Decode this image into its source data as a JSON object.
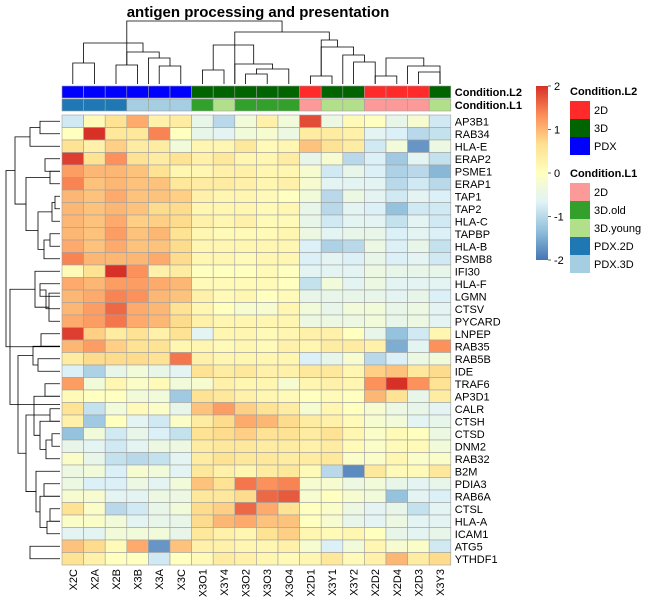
{
  "chart_data": {
    "type": "heatmap",
    "title": "antigen processing and presentation",
    "columns": [
      "X2C",
      "X2A",
      "X2B",
      "X3B",
      "X3A",
      "X3C",
      "X3O1",
      "X3Y4",
      "X3O2",
      "X3O3",
      "X3O4",
      "X2D1",
      "X3Y1",
      "X3Y2",
      "X2D2",
      "X2D4",
      "X2D3",
      "X3Y3"
    ],
    "rows": [
      "AP3B1",
      "RAB34",
      "HLA-E",
      "ERAP2",
      "PSME1",
      "ERAP1",
      "TAP1",
      "TAP2",
      "HLA-C",
      "TAPBP",
      "HLA-B",
      "PSMB8",
      "IFI30",
      "HLA-F",
      "LGMN",
      "CTSV",
      "PYCARD",
      "LNPEP",
      "RAB35",
      "RAB5B",
      "IDE",
      "TRAF6",
      "AP3D1",
      "CALR",
      "CTSH",
      "CTSD",
      "DNM2",
      "RAB32",
      "B2M",
      "PDIA3",
      "RAB6A",
      "CTSL",
      "HLA-A",
      "ICAM1",
      "ATG5",
      "YTHDF1"
    ],
    "values": [
      [
        -0.8,
        0.1,
        0.6,
        1.1,
        0.3,
        0.4,
        -0.5,
        -1.0,
        -0.3,
        0.3,
        -0.3,
        1.8,
        -0.4,
        0.1,
        0.0,
        -0.5,
        -0.2,
        -0.8
      ],
      [
        0.0,
        2.3,
        0.5,
        0.5,
        1.4,
        0.0,
        -0.5,
        -0.6,
        -0.3,
        -0.2,
        -0.4,
        0.4,
        0.4,
        0.3,
        -0.6,
        -0.7,
        -1.0,
        -0.9
      ],
      [
        0.6,
        0.3,
        0.8,
        0.4,
        0.4,
        -0.3,
        0.2,
        0.2,
        0.5,
        0.1,
        0.2,
        0.9,
        0.6,
        0.4,
        -0.8,
        -0.3,
        -1.7,
        -0.4
      ],
      [
        1.9,
        0.6,
        1.3,
        0.6,
        0.4,
        0.6,
        0.3,
        0.5,
        0.2,
        0.2,
        0.4,
        -0.5,
        -0.2,
        -1.0,
        -0.7,
        -1.2,
        -0.6,
        -0.9
      ],
      [
        1.2,
        1.0,
        1.0,
        0.9,
        0.6,
        0.2,
        0.2,
        0.3,
        0.3,
        0.2,
        0.2,
        -0.2,
        -0.8,
        -0.5,
        -0.7,
        -1.1,
        -1.0,
        -1.4
      ],
      [
        1.4,
        0.9,
        1.0,
        0.9,
        0.9,
        0.5,
        0.4,
        0.4,
        0.3,
        0.2,
        0.3,
        -0.2,
        -0.6,
        -0.6,
        -0.6,
        -1.0,
        -0.8,
        -1.0
      ],
      [
        1.0,
        0.9,
        1.1,
        0.9,
        0.9,
        0.8,
        0.3,
        0.2,
        0.2,
        0.1,
        0.0,
        -0.3,
        -1.0,
        -0.4,
        -0.6,
        -0.8,
        -0.6,
        -0.7
      ],
      [
        1.0,
        0.9,
        1.0,
        0.9,
        0.7,
        0.7,
        0.2,
        0.2,
        0.2,
        0.1,
        0.2,
        -0.5,
        -1.0,
        -0.6,
        -0.7,
        -1.3,
        -0.8,
        -0.8
      ],
      [
        1.0,
        0.9,
        1.1,
        0.8,
        0.8,
        0.7,
        0.3,
        0.2,
        0.3,
        0.1,
        0.1,
        -0.5,
        -0.8,
        -0.6,
        -0.6,
        -0.9,
        -0.6,
        -0.8
      ],
      [
        1.0,
        0.9,
        1.2,
        0.9,
        1.0,
        0.6,
        0.2,
        0.1,
        0.1,
        0.1,
        0.2,
        -0.4,
        -0.6,
        -0.5,
        -0.5,
        -0.7,
        -0.6,
        -0.7
      ],
      [
        1.1,
        0.9,
        1.1,
        0.9,
        0.9,
        0.7,
        0.2,
        0.2,
        0.2,
        0.2,
        0.2,
        -0.7,
        -1.1,
        -1.0,
        -0.4,
        -0.7,
        -0.5,
        -0.9
      ],
      [
        1.4,
        1.0,
        1.0,
        1.0,
        1.1,
        0.7,
        0.2,
        0.2,
        0.1,
        0.2,
        0.2,
        -0.7,
        -0.6,
        -0.7,
        -0.5,
        -0.7,
        -0.6,
        -0.8
      ],
      [
        0.1,
        0.6,
        2.6,
        1.3,
        0.3,
        0.4,
        0.0,
        0.0,
        0.0,
        0.1,
        0.0,
        -0.6,
        -0.6,
        -0.6,
        -0.4,
        -0.5,
        -0.5,
        -0.5
      ],
      [
        1.1,
        1.0,
        1.2,
        1.2,
        1.1,
        1.0,
        0.1,
        0.1,
        0.1,
        0.1,
        0.0,
        -0.9,
        -0.3,
        -0.6,
        -0.4,
        -0.6,
        -0.6,
        -0.6
      ],
      [
        1.0,
        1.1,
        1.4,
        1.3,
        1.0,
        0.9,
        0.3,
        0.1,
        0.2,
        0.0,
        0.1,
        -0.5,
        -0.5,
        -0.5,
        -0.5,
        -0.6,
        -0.5,
        -0.7
      ],
      [
        1.0,
        1.2,
        1.6,
        1.1,
        1.0,
        0.6,
        0.2,
        0.0,
        -0.2,
        -0.2,
        0.2,
        -0.3,
        -0.5,
        -0.3,
        -0.3,
        -0.5,
        -0.4,
        -0.6
      ],
      [
        1.1,
        1.2,
        1.5,
        1.1,
        1.0,
        0.7,
        0.3,
        0.2,
        0.2,
        0.2,
        0.2,
        -0.4,
        -0.4,
        -0.4,
        -0.3,
        -0.5,
        -0.4,
        -0.6
      ],
      [
        1.9,
        0.8,
        0.4,
        0.6,
        0.3,
        0.6,
        -0.6,
        0.2,
        0.2,
        0.1,
        0.2,
        0.3,
        0.3,
        0.0,
        -0.5,
        -1.3,
        -0.8,
        0.2
      ],
      [
        1.0,
        1.2,
        0.8,
        0.6,
        0.6,
        0.2,
        0.2,
        0.1,
        0.2,
        0.1,
        0.3,
        0.2,
        0.4,
        0.4,
        0.3,
        -1.5,
        -0.6,
        1.3
      ],
      [
        0.4,
        0.7,
        0.7,
        0.7,
        0.6,
        1.5,
        0.3,
        0.2,
        0.2,
        0.2,
        0.2,
        -0.7,
        -0.5,
        -0.2,
        -1.0,
        -0.7,
        -0.4,
        -0.3
      ],
      [
        -0.7,
        -1.1,
        -0.5,
        -0.3,
        -0.5,
        -0.6,
        0.6,
        0.4,
        0.5,
        0.3,
        0.3,
        0.5,
        0.5,
        0.2,
        0.8,
        0.9,
        0.5,
        0.7
      ],
      [
        1.2,
        -0.3,
        0.2,
        -0.1,
        0.1,
        -0.3,
        -0.2,
        0.3,
        0.2,
        0.2,
        -0.2,
        0.2,
        0.3,
        0.2,
        1.3,
        2.1,
        1.3,
        0.6
      ],
      [
        0.1,
        0.0,
        0.0,
        -0.3,
        -0.3,
        -1.2,
        0.6,
        0.5,
        0.3,
        0.2,
        0.1,
        0.0,
        0.1,
        0.0,
        1.0,
        0.6,
        -0.5,
        0.4
      ],
      [
        0.6,
        -0.9,
        -0.3,
        0.1,
        -0.1,
        -0.5,
        0.9,
        1.2,
        0.8,
        0.6,
        0.4,
        -0.2,
        0.2,
        0.0,
        -0.2,
        -0.4,
        -0.5,
        -0.6
      ],
      [
        0.3,
        -1.2,
        0.0,
        -0.6,
        -0.8,
        -0.1,
        0.4,
        0.7,
        1.1,
        1.0,
        0.7,
        0.4,
        0.3,
        0.1,
        -0.2,
        -0.3,
        -0.6,
        -0.5
      ],
      [
        -1.3,
        -0.3,
        -0.8,
        -0.5,
        -0.7,
        -0.9,
        0.6,
        0.7,
        0.8,
        0.6,
        0.6,
        0.4,
        0.6,
        0.2,
        -0.1,
        0.1,
        0.0,
        -0.4
      ],
      [
        -0.5,
        -0.6,
        -0.8,
        -0.6,
        -0.4,
        -0.4,
        0.4,
        0.5,
        0.5,
        0.4,
        0.4,
        0.3,
        0.4,
        0.1,
        -0.1,
        0.1,
        0.1,
        -0.3
      ],
      [
        -0.1,
        -0.5,
        -0.9,
        -1.0,
        -0.9,
        -0.6,
        0.4,
        0.6,
        0.5,
        0.5,
        0.4,
        0.4,
        0.5,
        -0.1,
        -0.1,
        0.2,
        -0.1,
        -0.1
      ],
      [
        -0.4,
        -0.3,
        -0.7,
        -0.2,
        -0.3,
        -0.6,
        0.5,
        0.3,
        0.2,
        0.4,
        0.5,
        0.1,
        -1.0,
        -1.8,
        0.5,
        0.1,
        0.1,
        0.5
      ],
      [
        -0.4,
        -0.7,
        -0.7,
        -0.4,
        -0.6,
        -0.3,
        0.9,
        0.6,
        1.5,
        1.3,
        1.4,
        -0.2,
        -0.2,
        -0.4,
        -0.3,
        -0.5,
        -0.6,
        -0.5
      ],
      [
        -0.2,
        -0.2,
        -0.6,
        -0.6,
        -0.4,
        -0.4,
        0.5,
        0.5,
        0.7,
        1.6,
        1.7,
        -0.2,
        0.0,
        -0.2,
        -0.3,
        -1.3,
        -0.6,
        -0.7
      ],
      [
        0.6,
        -0.1,
        -1.0,
        -0.8,
        -0.5,
        -0.3,
        0.7,
        0.8,
        1.6,
        1.1,
        0.6,
        0.0,
        -0.1,
        -0.4,
        -0.6,
        -0.5,
        -0.9,
        -0.6
      ],
      [
        -0.1,
        -0.1,
        -0.3,
        -0.6,
        -0.5,
        -0.5,
        0.7,
        1.0,
        1.1,
        0.9,
        0.9,
        0.0,
        -0.2,
        -0.5,
        -0.6,
        -0.4,
        -0.6,
        -0.6
      ],
      [
        -0.6,
        -0.6,
        -0.3,
        -0.3,
        -0.3,
        -0.5,
        0.5,
        0.3,
        0.2,
        0.6,
        0.8,
        0.2,
        0.1,
        0.2,
        0.0,
        -0.5,
        -0.6,
        -0.5
      ],
      [
        0.9,
        0.7,
        0.1,
        1.1,
        -1.7,
        0.9,
        0.3,
        0.3,
        0.2,
        0.2,
        0.3,
        -0.2,
        -0.7,
        -0.3,
        0.2,
        -0.2,
        -0.1,
        -0.8
      ],
      [
        0.6,
        0.3,
        0.0,
        0.0,
        -0.8,
        0.0,
        0.1,
        0.4,
        0.3,
        0.2,
        0.1,
        0.2,
        0.5,
        0.1,
        0.3,
        1.0,
        0.4,
        0.7
      ]
    ],
    "color_scale": {
      "range": [
        -2,
        2
      ],
      "colors": [
        "#4575b4",
        "#91bfdb",
        "#e0f3f8",
        "#ffffbf",
        "#fee090",
        "#fc8d59",
        "#d73027"
      ],
      "ticks": [
        2,
        1,
        0,
        -1,
        -2
      ]
    },
    "annotations": [
      {
        "name": "Condition.L2",
        "values": [
          "PDX",
          "PDX",
          "PDX",
          "PDX",
          "PDX",
          "PDX",
          "3D",
          "3D",
          "3D",
          "3D",
          "3D",
          "2D",
          "3D",
          "3D",
          "2D",
          "2D",
          "2D",
          "3D"
        ],
        "legend": [
          {
            "label": "2D",
            "color": "#ff2a2a"
          },
          {
            "label": "3D",
            "color": "#006400"
          },
          {
            "label": "PDX",
            "color": "#0000ff"
          }
        ]
      },
      {
        "name": "Condition.L1",
        "values": [
          "PDX.2D",
          "PDX.2D",
          "PDX.2D",
          "PDX.3D",
          "PDX.3D",
          "PDX.3D",
          "3D.old",
          "3D.young",
          "3D.old",
          "3D.old",
          "3D.old",
          "2D",
          "3D.young",
          "3D.young",
          "2D",
          "2D",
          "2D",
          "3D.young"
        ],
        "legend": [
          {
            "label": "2D",
            "color": "#fb9a99"
          },
          {
            "label": "3D.old",
            "color": "#33a02c"
          },
          {
            "label": "3D.young",
            "color": "#b2df8a"
          },
          {
            "label": "PDX.2D",
            "color": "#1f78b4"
          },
          {
            "label": "PDX.3D",
            "color": "#a6cee3"
          }
        ]
      }
    ]
  }
}
